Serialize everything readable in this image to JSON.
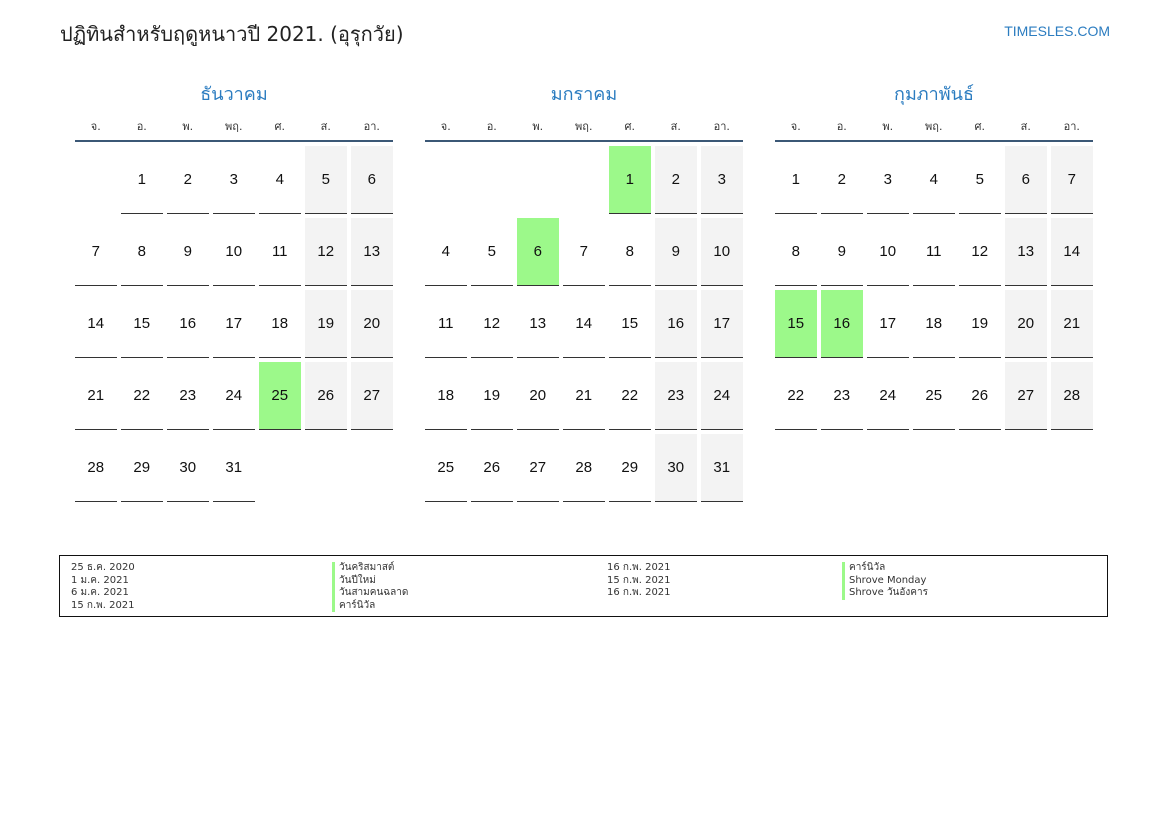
{
  "header": {
    "title": "ปฏิทินสำหรับฤดูหนาวปี 2021. (อุรุกวัย)",
    "site": "TIMESLES.COM"
  },
  "colors": {
    "accent": "#2b7cc0",
    "holiday": "#9cf98a",
    "weekend": "#f3f3f3"
  },
  "weekdays": [
    "จ.",
    "อ.",
    "พ.",
    "พฤ.",
    "ศ.",
    "ส.",
    "อา."
  ],
  "months": [
    {
      "name": "ธันวาคม",
      "offset": 1,
      "days": 31,
      "holidays": [
        25
      ]
    },
    {
      "name": "มกราคม",
      "offset": 4,
      "days": 31,
      "holidays": [
        1,
        6
      ]
    },
    {
      "name": "กุมภาพันธ์",
      "offset": 0,
      "days": 28,
      "holidays": [
        15,
        16
      ]
    }
  ],
  "legend": [
    {
      "date": "25 ธ.ค. 2020",
      "name": "วันคริสมาสต์"
    },
    {
      "date": "1 ม.ค. 2021",
      "name": "วันปีใหม่"
    },
    {
      "date": "6 ม.ค. 2021",
      "name": "วันสามคนฉลาด"
    },
    {
      "date": "15 ก.พ. 2021",
      "name": "คาร์นิวัล"
    },
    {
      "date": "16 ก.พ. 2021",
      "name": "คาร์นิวัล"
    },
    {
      "date": "15 ก.พ. 2021",
      "name": "Shrove Monday"
    },
    {
      "date": "16 ก.พ. 2021",
      "name": "Shrove วันอังคาร"
    }
  ]
}
